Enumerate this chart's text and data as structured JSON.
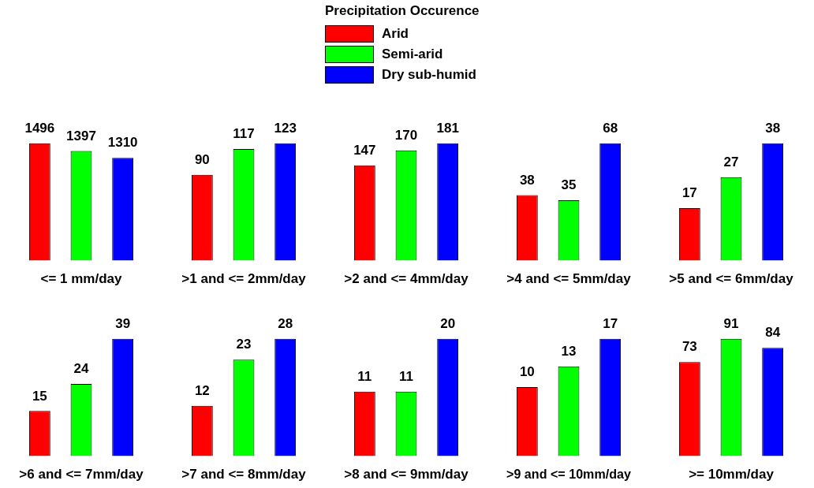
{
  "chart_data": [
    {
      "type": "other",
      "legend_title": "Precipitation Occurence",
      "categories": [
        "Arid",
        "Semi-arid",
        "Dry sub-humid"
      ],
      "colors": [
        "#ff0000",
        "#00ff00",
        "#0000ff"
      ]
    },
    {
      "type": "bar",
      "categories": [
        null,
        null,
        null
      ],
      "xlabel": "<= 1 mm/day",
      "data_labels": true,
      "values": [
        1496,
        1397,
        1310
      ],
      "colors": [
        "#ff0000",
        "#00ff00",
        "#0000ff"
      ]
    },
    {
      "type": "bar",
      "categories": [
        null,
        null,
        null
      ],
      "xlabel": ">1 and <= 2mm/day",
      "data_labels": true,
      "values": [
        90,
        117,
        123
      ],
      "colors": [
        "#ff0000",
        "#00ff00",
        "#0000ff"
      ]
    },
    {
      "type": "bar",
      "categories": [
        null,
        null,
        null
      ],
      "xlabel": ">2 and <= 4mm/day",
      "data_labels": true,
      "values": [
        147,
        170,
        181
      ],
      "colors": [
        "#ff0000",
        "#00ff00",
        "#0000ff"
      ]
    },
    {
      "type": "bar",
      "categories": [
        null,
        null,
        null
      ],
      "xlabel": ">4 and <= 5mm/day",
      "data_labels": true,
      "values": [
        38,
        35,
        68
      ],
      "colors": [
        "#ff0000",
        "#00ff00",
        "#0000ff"
      ]
    },
    {
      "type": "bar",
      "categories": [
        null,
        null,
        null
      ],
      "xlabel": ">5 and <= 6mm/day",
      "data_labels": true,
      "values": [
        17,
        27,
        38
      ],
      "colors": [
        "#ff0000",
        "#00ff00",
        "#0000ff"
      ]
    },
    {
      "type": "bar",
      "categories": [
        null,
        null,
        null
      ],
      "xlabel": ">6 and <= 7mm/day",
      "data_labels": true,
      "values": [
        15,
        24,
        39
      ],
      "colors": [
        "#ff0000",
        "#00ff00",
        "#0000ff"
      ]
    },
    {
      "type": "bar",
      "categories": [
        null,
        null,
        null
      ],
      "xlabel": ">7 and <= 8mm/day",
      "data_labels": true,
      "values": [
        12,
        23,
        28
      ],
      "colors": [
        "#ff0000",
        "#00ff00",
        "#0000ff"
      ]
    },
    {
      "type": "bar",
      "categories": [
        null,
        null,
        null
      ],
      "xlabel": ">8 and <= 9mm/day",
      "data_labels": true,
      "values": [
        11,
        11,
        20
      ],
      "colors": [
        "#ff0000",
        "#00ff00",
        "#0000ff"
      ]
    },
    {
      "type": "bar",
      "categories": [
        null,
        null,
        null
      ],
      "xlabel": ">9 and <= 10mm/day",
      "data_labels": true,
      "values": [
        10,
        13,
        17
      ],
      "colors": [
        "#ff0000",
        "#00ff00",
        "#0000ff"
      ]
    },
    {
      "type": "bar",
      "categories": [
        null,
        null,
        null
      ],
      "xlabel": ">= 10mm/day",
      "data_labels": true,
      "values": [
        73,
        91,
        84
      ],
      "colors": [
        "#ff0000",
        "#00ff00",
        "#0000ff"
      ]
    }
  ]
}
